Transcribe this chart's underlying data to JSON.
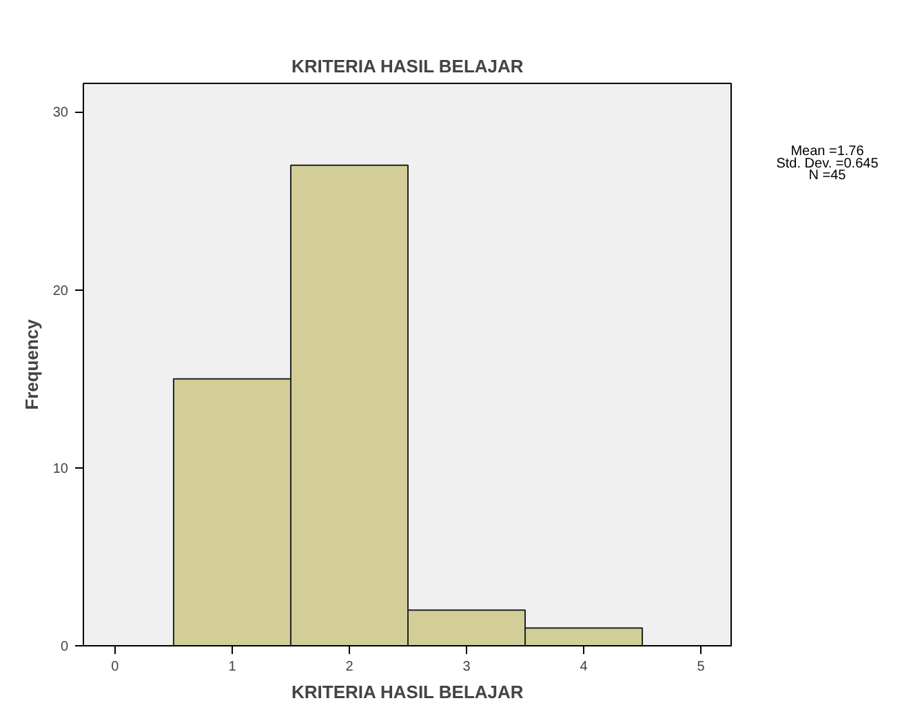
{
  "chart_data": {
    "type": "histogram",
    "title": "KRITERIA HASIL BELAJAR",
    "xlabel": "KRITERIA HASIL BELAJAR",
    "ylabel": "Frequency",
    "bins": [
      0.5,
      1.5,
      2.5,
      3.5,
      4.5
    ],
    "values": [
      15,
      27,
      2,
      1
    ],
    "color": "#d3ce97",
    "xlim": [
      -0.27,
      5.27
    ],
    "xticks": [
      0,
      1,
      2,
      3,
      4,
      5
    ],
    "ylim": [
      0,
      31.6
    ],
    "yticks": [
      0,
      10,
      20,
      30
    ],
    "grid": false,
    "annotations": [
      "Mean =1.76",
      "Std. Dev. =0.645",
      "N =45"
    ]
  }
}
